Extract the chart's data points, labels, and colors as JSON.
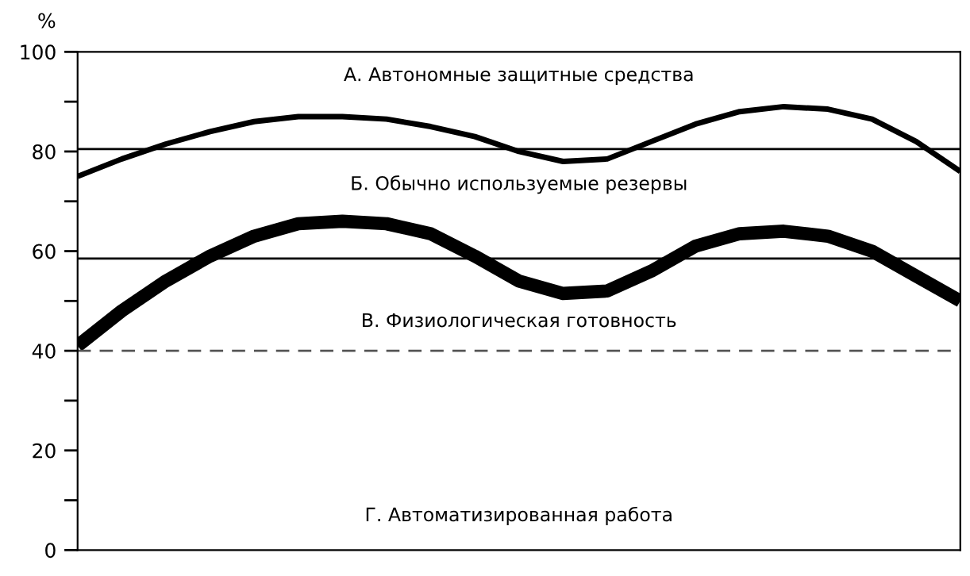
{
  "chart_data": {
    "type": "line",
    "ylabel": "%",
    "categories": [
      null,
      null,
      null,
      null,
      null,
      null,
      null,
      null,
      null,
      null,
      null,
      null,
      null,
      null,
      null,
      null,
      null,
      null,
      null,
      null,
      null
    ],
    "series": [
      {
        "color": "#000000",
        "values": [
          75,
          78.5,
          81.5,
          84,
          86,
          87,
          87,
          86.5,
          85,
          83,
          80,
          78,
          78.5,
          82,
          85.5,
          88,
          89,
          88.5,
          86.5,
          82,
          76
        ]
      },
      {
        "color": "#000000",
        "values": [
          41,
          48,
          54,
          59,
          63,
          65.5,
          66,
          65.5,
          63.5,
          59,
          54,
          51.5,
          52,
          56,
          61,
          63.5,
          64,
          63,
          60,
          55,
          50
        ]
      }
    ],
    "ylim": [
      0,
      100
    ],
    "yticks": [
      0,
      {
        "value": 10,
        "label": null
      },
      20,
      {
        "value": 30,
        "label": null
      },
      40,
      {
        "value": 50,
        "label": null
      },
      60,
      {
        "value": 70,
        "label": null
      },
      80,
      {
        "value": 90,
        "label": null
      },
      100
    ],
    "tick_labels": "y",
    "ref_lines": [
      {
        "axis": "y",
        "value": 80.5,
        "color": "#000000",
        "line_style": "solid"
      },
      {
        "axis": "y",
        "value": 58.5,
        "color": "#000000",
        "line_style": "solid"
      },
      {
        "axis": "y",
        "value": 40,
        "color": "#555555",
        "line_style": "dashed"
      }
    ],
    "annotations": [
      "А. Автономные защитные средства",
      "Б. Обычно используемые резервы",
      "В. Физиологическая готовность",
      "Г. Автоматизированная работа"
    ],
    "grid": false,
    "legend": false
  }
}
